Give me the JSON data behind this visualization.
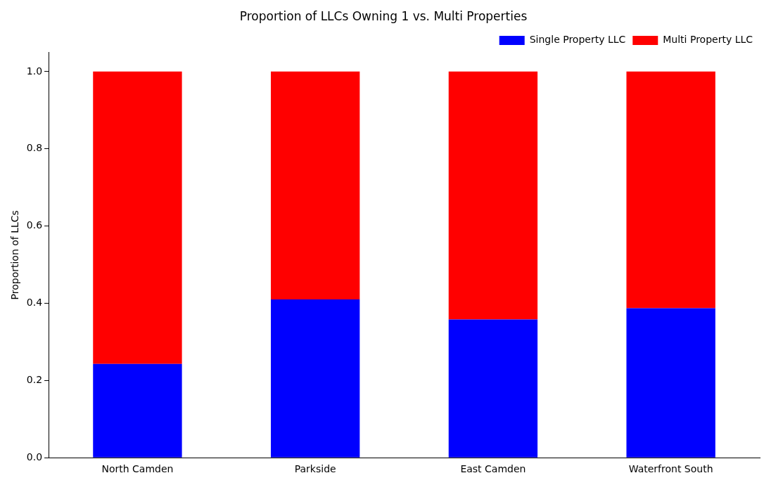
{
  "chart_data": {
    "type": "bar",
    "title": "Proportion of LLCs Owning 1 vs. Multi Properties",
    "ylabel": "Proportion of LLCs",
    "categories": [
      "North Camden",
      "Parkside",
      "East Camden",
      "Waterfront South"
    ],
    "stacked": true,
    "series": [
      {
        "name": "Single Property LLC",
        "color": "#0000ff",
        "values": [
          0.243,
          0.41,
          0.358,
          0.387
        ]
      },
      {
        "name": "Multi Property LLC",
        "color": "#ff0000",
        "values": [
          0.757,
          0.59,
          0.642,
          0.613
        ]
      }
    ],
    "ylim": [
      0,
      1.05
    ],
    "yticks": [
      {
        "value": 0,
        "label": "0.0"
      },
      {
        "value": 0.2,
        "label": "0.2"
      },
      {
        "value": 0.4,
        "label": "0.4"
      },
      {
        "value": 0.6,
        "label": "0.6"
      },
      {
        "value": 0.8,
        "label": "0.8"
      },
      {
        "value": 1,
        "label": "1.0"
      }
    ],
    "legend": "top right",
    "grid": false
  }
}
